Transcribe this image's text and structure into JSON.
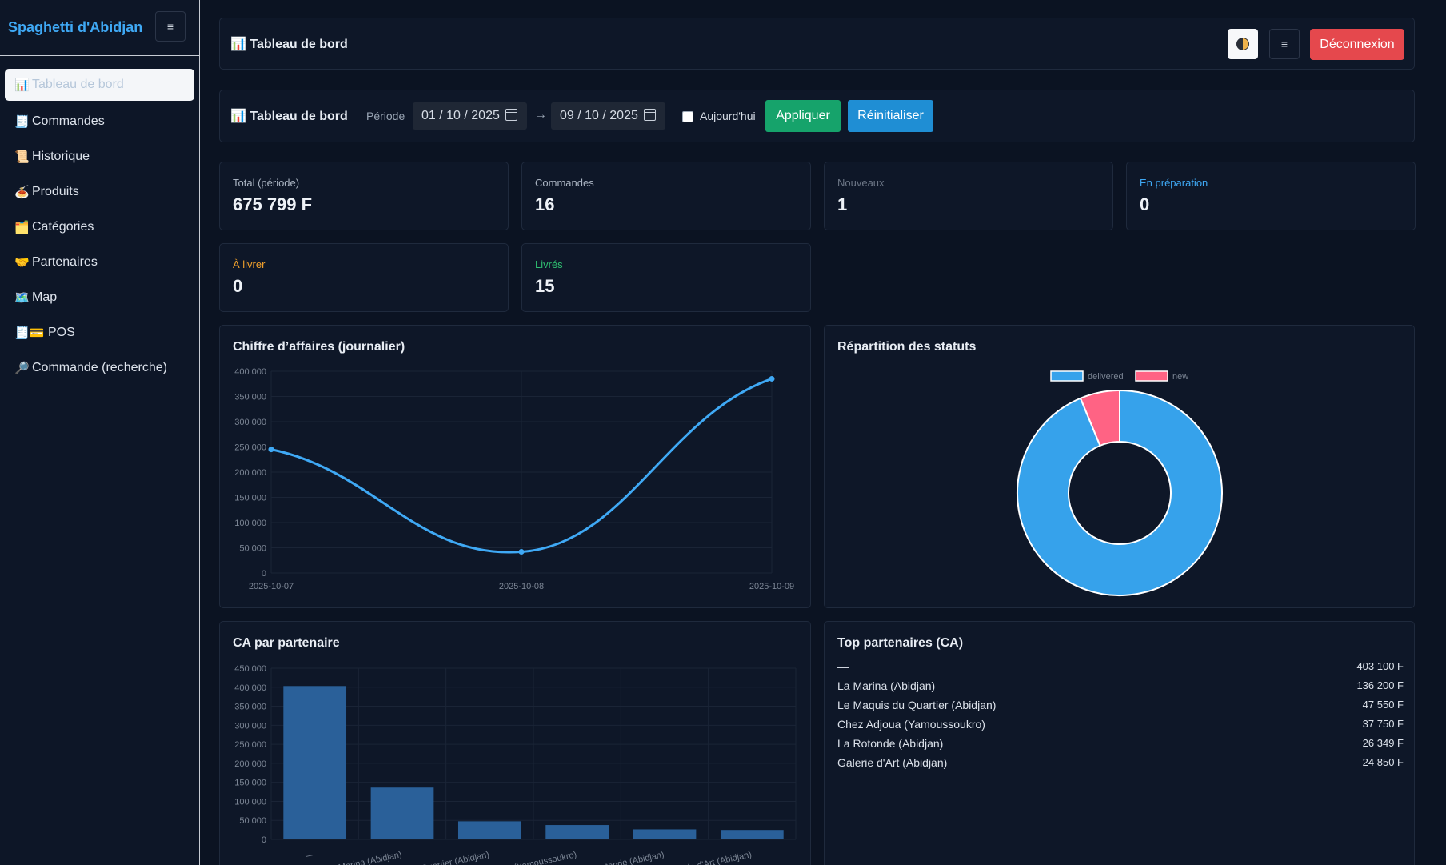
{
  "brand": "Spaghetti d'Abidjan",
  "sidebar": {
    "items": [
      {
        "icon": "📊",
        "label": "Tableau de bord"
      },
      {
        "icon": "🧾",
        "label": "Commandes"
      },
      {
        "icon": "📜",
        "label": "Historique"
      },
      {
        "icon": "🍝",
        "label": "Produits"
      },
      {
        "icon": "🗂️",
        "label": "Catégories"
      },
      {
        "icon": "🤝",
        "label": "Partenaires"
      },
      {
        "icon": "🗺️",
        "label": "Map"
      },
      {
        "icon": "🧾💳",
        "label": "POS"
      },
      {
        "icon": "🔎",
        "label": "Commande (recherche)"
      }
    ]
  },
  "topbar": {
    "title": "📊 Tableau de bord",
    "logout": "Déconnexion",
    "menu": "≡"
  },
  "filter": {
    "title": "📊 Tableau de bord",
    "period_label": "Période",
    "date_from": "01 / 10 / 2025",
    "arrow": "→",
    "date_to": "09 / 10 / 2025",
    "today_label": "Aujourd'hui",
    "apply": "Appliquer",
    "reset": "Réinitialiser"
  },
  "stats": [
    {
      "label": "Total (période)",
      "value": "675 799 F",
      "color": "#aab4c2"
    },
    {
      "label": "Commandes",
      "value": "16",
      "color": "#aab4c2"
    },
    {
      "label": "Nouveaux",
      "value": "1",
      "color": "#6b7585"
    },
    {
      "label": "En préparation",
      "value": "0",
      "color": "#3fa9f5"
    },
    {
      "label": "À livrer",
      "value": "0",
      "color": "#f0a02c"
    },
    {
      "label": "Livrés",
      "value": "15",
      "color": "#2fbf71"
    }
  ],
  "revenue_chart": {
    "title": "Chiffre d’affaires (journalier)",
    "chart_data": {
      "type": "line",
      "x": [
        "2025-10-07",
        "2025-10-08",
        "2025-10-09"
      ],
      "values": [
        245000,
        42000,
        385000
      ],
      "ylim": [
        0,
        400000
      ],
      "yticks": [
        "0",
        "50 000",
        "100 000",
        "150 000",
        "200 000",
        "250 000",
        "300 000",
        "350 000",
        "400 000"
      ],
      "color": "#3fa9f5"
    }
  },
  "status_chart": {
    "title": "Répartition des statuts",
    "chart_data": {
      "type": "pie",
      "labels": [
        "delivered",
        "new"
      ],
      "values": [
        15,
        1
      ],
      "colors": [
        "#36a2eb",
        "#ff6384"
      ]
    }
  },
  "partner_chart": {
    "title": "CA par partenaire",
    "chart_data": {
      "type": "bar",
      "categories": [
        "—",
        "La Marina (Abidjan)",
        "Le Maquis du Quartier (Abidjan)",
        "Chez Adjoua (Yamoussoukro)",
        "La Rotonde (Abidjan)",
        "Galerie d'Art (Abidjan)"
      ],
      "values": [
        403100,
        136200,
        47550,
        37750,
        26349,
        24850
      ],
      "ylim": [
        0,
        450000
      ],
      "yticks": [
        "0",
        "50 000",
        "100 000",
        "150 000",
        "200 000",
        "250 000",
        "300 000",
        "350 000",
        "400 000",
        "450 000"
      ],
      "color": "#2a6099"
    }
  },
  "top_partners": {
    "title": "Top partenaires (CA)",
    "rows": [
      {
        "name": "—",
        "amount": "403 100 F"
      },
      {
        "name": "La Marina (Abidjan)",
        "amount": "136 200 F"
      },
      {
        "name": "Le Maquis du Quartier (Abidjan)",
        "amount": "47 550 F"
      },
      {
        "name": "Chez Adjoua (Yamoussoukro)",
        "amount": "37 750 F"
      },
      {
        "name": "La Rotonde (Abidjan)",
        "amount": "26 349 F"
      },
      {
        "name": "Galerie d'Art (Abidjan)",
        "amount": "24 850 F"
      }
    ]
  }
}
